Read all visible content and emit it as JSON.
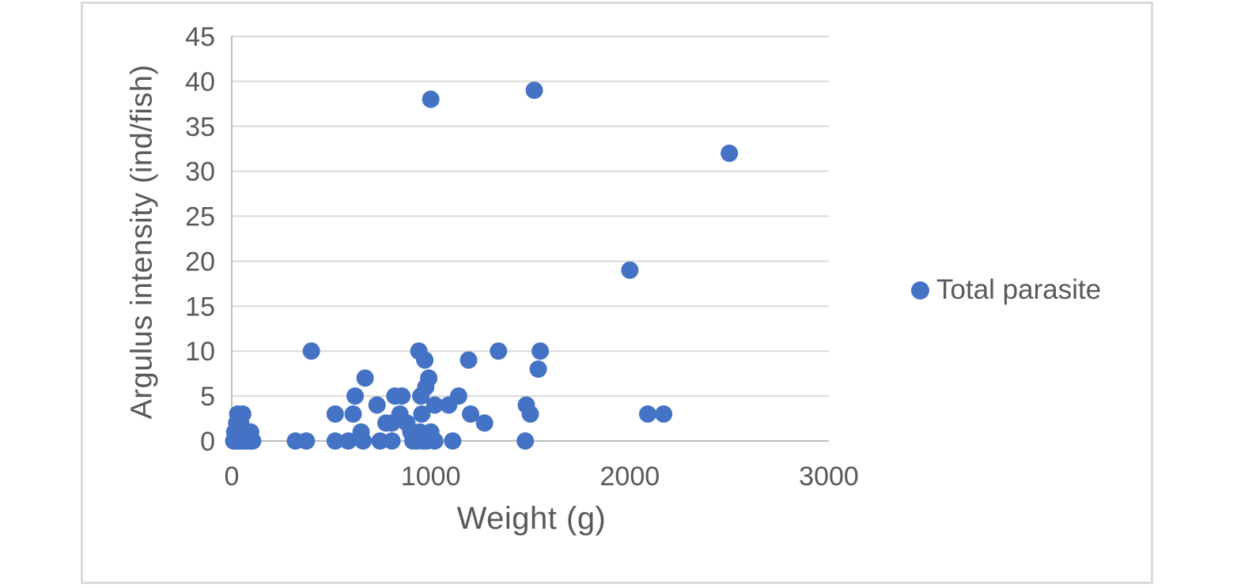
{
  "chart_data": {
    "type": "scatter",
    "xlabel": "Weight (g)",
    "ylabel": "Argulus intensity (ind/fish)",
    "xlim": [
      0,
      3000
    ],
    "ylim": [
      0,
      45
    ],
    "x_ticks": [
      {
        "value": 0,
        "label": "0"
      },
      {
        "value": 1000,
        "label": "1000"
      },
      {
        "value": 2000,
        "label": "2000"
      },
      {
        "value": 3000,
        "label": "3000"
      }
    ],
    "y_ticks": [
      {
        "value": 0,
        "label": "0"
      },
      {
        "value": 5,
        "label": "5"
      },
      {
        "value": 10,
        "label": "10"
      },
      {
        "value": 15,
        "label": "15"
      },
      {
        "value": 20,
        "label": "20"
      },
      {
        "value": 25,
        "label": "25"
      },
      {
        "value": 30,
        "label": "30"
      },
      {
        "value": 35,
        "label": "35"
      },
      {
        "value": 40,
        "label": "40"
      },
      {
        "value": 45,
        "label": "45"
      }
    ],
    "grid": "horizontal",
    "legend": {
      "position": "right",
      "label": "Total parasite"
    },
    "series": [
      {
        "name": "Total parasite",
        "marker": "circle",
        "color": "#4472C4",
        "points": [
          [
            10,
            0
          ],
          [
            20,
            0
          ],
          [
            30,
            0
          ],
          [
            45,
            0
          ],
          [
            60,
            0
          ],
          [
            75,
            0
          ],
          [
            90,
            0
          ],
          [
            105,
            0
          ],
          [
            15,
            1
          ],
          [
            35,
            1
          ],
          [
            55,
            1
          ],
          [
            75,
            1
          ],
          [
            95,
            1
          ],
          [
            25,
            2
          ],
          [
            45,
            2
          ],
          [
            30,
            3
          ],
          [
            55,
            3
          ],
          [
            320,
            0
          ],
          [
            375,
            0
          ],
          [
            400,
            10
          ],
          [
            520,
            3
          ],
          [
            520,
            0
          ],
          [
            585,
            0
          ],
          [
            610,
            3
          ],
          [
            620,
            5
          ],
          [
            650,
            1
          ],
          [
            660,
            0
          ],
          [
            670,
            7
          ],
          [
            730,
            4
          ],
          [
            745,
            0
          ],
          [
            775,
            2
          ],
          [
            805,
            2
          ],
          [
            805,
            0
          ],
          [
            820,
            5
          ],
          [
            845,
            3
          ],
          [
            880,
            2
          ],
          [
            900,
            1
          ],
          [
            910,
            0
          ],
          [
            930,
            0
          ],
          [
            945,
            1
          ],
          [
            960,
            0
          ],
          [
            980,
            0
          ],
          [
            1000,
            1
          ],
          [
            1020,
            0
          ],
          [
            855,
            5
          ],
          [
            940,
            10
          ],
          [
            970,
            9
          ],
          [
            990,
            7
          ],
          [
            975,
            6
          ],
          [
            950,
            5
          ],
          [
            955,
            3
          ],
          [
            1020,
            4
          ],
          [
            1090,
            4
          ],
          [
            1110,
            0
          ],
          [
            1140,
            5
          ],
          [
            1190,
            9
          ],
          [
            1200,
            3
          ],
          [
            1270,
            2
          ],
          [
            1340,
            10
          ],
          [
            1475,
            0
          ],
          [
            1480,
            4
          ],
          [
            1500,
            3
          ],
          [
            1540,
            8
          ],
          [
            1550,
            10
          ],
          [
            1000,
            38
          ],
          [
            1520,
            39
          ],
          [
            2000,
            19
          ],
          [
            2500,
            32
          ],
          [
            2090,
            3
          ],
          [
            2170,
            3
          ]
        ]
      }
    ]
  },
  "colors": {
    "marker": "#4472C4",
    "text": "#595959",
    "gridline": "#D9D9D9",
    "axis_line": "#BFBFBF",
    "frame_border": "#DADADA",
    "background": "#FFFFFF"
  }
}
